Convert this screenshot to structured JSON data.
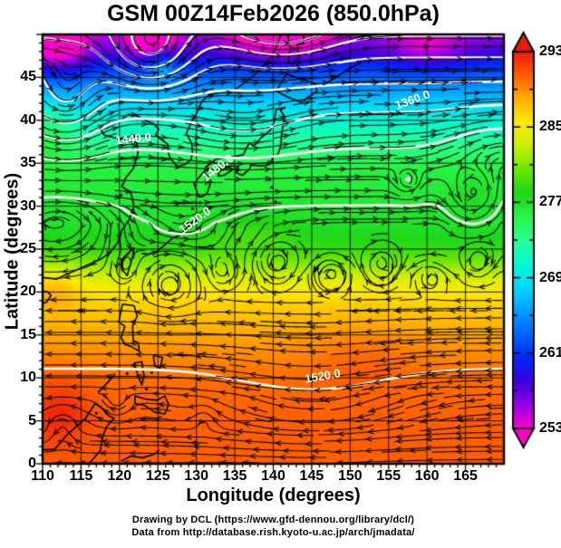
{
  "title": "GSM 00Z14Feb2026 (850.0hPa)",
  "axes": {
    "xlabel": "Longitude (degrees)",
    "ylabel": "Latitude (degrees)",
    "x_ticks": [
      "110",
      "115",
      "120",
      "125",
      "130",
      "135",
      "140",
      "145",
      "150",
      "155",
      "160",
      "165"
    ],
    "y_ticks": [
      "0",
      "5",
      "10",
      "15",
      "20",
      "25",
      "30",
      "35",
      "40",
      "45"
    ]
  },
  "colorbar": {
    "labels": [
      "293",
      "285",
      "277",
      "269",
      "261",
      "253"
    ]
  },
  "credits": {
    "line1": "Drawing by DCL (https://www.gfd-dennou.org/library/dcl/)",
    "line2": "Data from http://database.rish.kyoto-u.ac.jp/arch/jmadata/"
  },
  "chart_data": {
    "type": "heatmap",
    "title": "GSM 00Z14Feb2026 (850.0hPa)",
    "model": "GSM",
    "valid_time": "00Z 14 Feb 2026",
    "level": "850.0 hPa",
    "xlabel": "Longitude (degrees)",
    "ylabel": "Latitude (degrees)",
    "xlim": [
      110,
      170
    ],
    "ylim": [
      0,
      50
    ],
    "x_ticks": [
      110,
      115,
      120,
      125,
      130,
      135,
      140,
      145,
      150,
      155,
      160,
      165
    ],
    "y_ticks": [
      0,
      5,
      10,
      15,
      20,
      25,
      30,
      35,
      40,
      45
    ],
    "grid": "5-degree black graticule",
    "colorbar": {
      "orientation": "vertical",
      "position": "right",
      "range": [
        253,
        293
      ],
      "tick_values": [
        253,
        261,
        269,
        277,
        285,
        293
      ],
      "minor_tick_step": 4,
      "style": "rainbow: magenta (low) through blue, cyan, green, yellow, orange to red (high), arrow caps at both ends"
    },
    "contours": {
      "color": "white",
      "interval": 40,
      "labels": [
        {
          "text": "1360.0",
          "lon": 158.1,
          "lat": 42.4,
          "angle": -20
        },
        {
          "text": "1440.0",
          "lon": 121.8,
          "lat": 37.9,
          "angle": -6
        },
        {
          "text": "1480.0",
          "lon": 132.7,
          "lat": 34.5,
          "angle": -38
        },
        {
          "text": "1520.0",
          "lon": 129.8,
          "lat": 28.4,
          "angle": -36
        },
        {
          "text": "1520.0",
          "lon": 146.4,
          "lat": 10.2,
          "angle": -10
        }
      ]
    },
    "wind": {
      "style": "black streamlines with arrowheads",
      "regimes": [
        "westerly flow north of ~25N",
        "easterly trade flow south of ~20N"
      ],
      "vortices": [
        {
          "lon": 125.5,
          "lat": 46.5,
          "rotation": "cyclonic"
        },
        {
          "lon": 166.0,
          "lat": 31.5,
          "rotation": "cyclonic"
        },
        {
          "lon": 126.5,
          "lat": 21.0,
          "rotation": "anticyclonic"
        }
      ]
    },
    "shading_samples_K": [
      {
        "lon": 112,
        "lat": 47,
        "value": 253
      },
      {
        "lon": 124,
        "lat": 47,
        "value": 262
      },
      {
        "lon": 140,
        "lat": 49,
        "value": 253
      },
      {
        "lon": 125.5,
        "lat": 46.5,
        "value": 266
      },
      {
        "lon": 150,
        "lat": 45,
        "value": 261
      },
      {
        "lon": 120,
        "lat": 40,
        "value": 272
      },
      {
        "lon": 135,
        "lat": 35,
        "value": 276
      },
      {
        "lon": 150,
        "lat": 30,
        "value": 277
      },
      {
        "lon": 130,
        "lat": 25,
        "value": 279
      },
      {
        "lon": 140,
        "lat": 22,
        "value": 283
      },
      {
        "lon": 120,
        "lat": 18,
        "value": 287
      },
      {
        "lon": 150,
        "lat": 12,
        "value": 289
      },
      {
        "lon": 115,
        "lat": 5,
        "value": 291
      }
    ]
  }
}
